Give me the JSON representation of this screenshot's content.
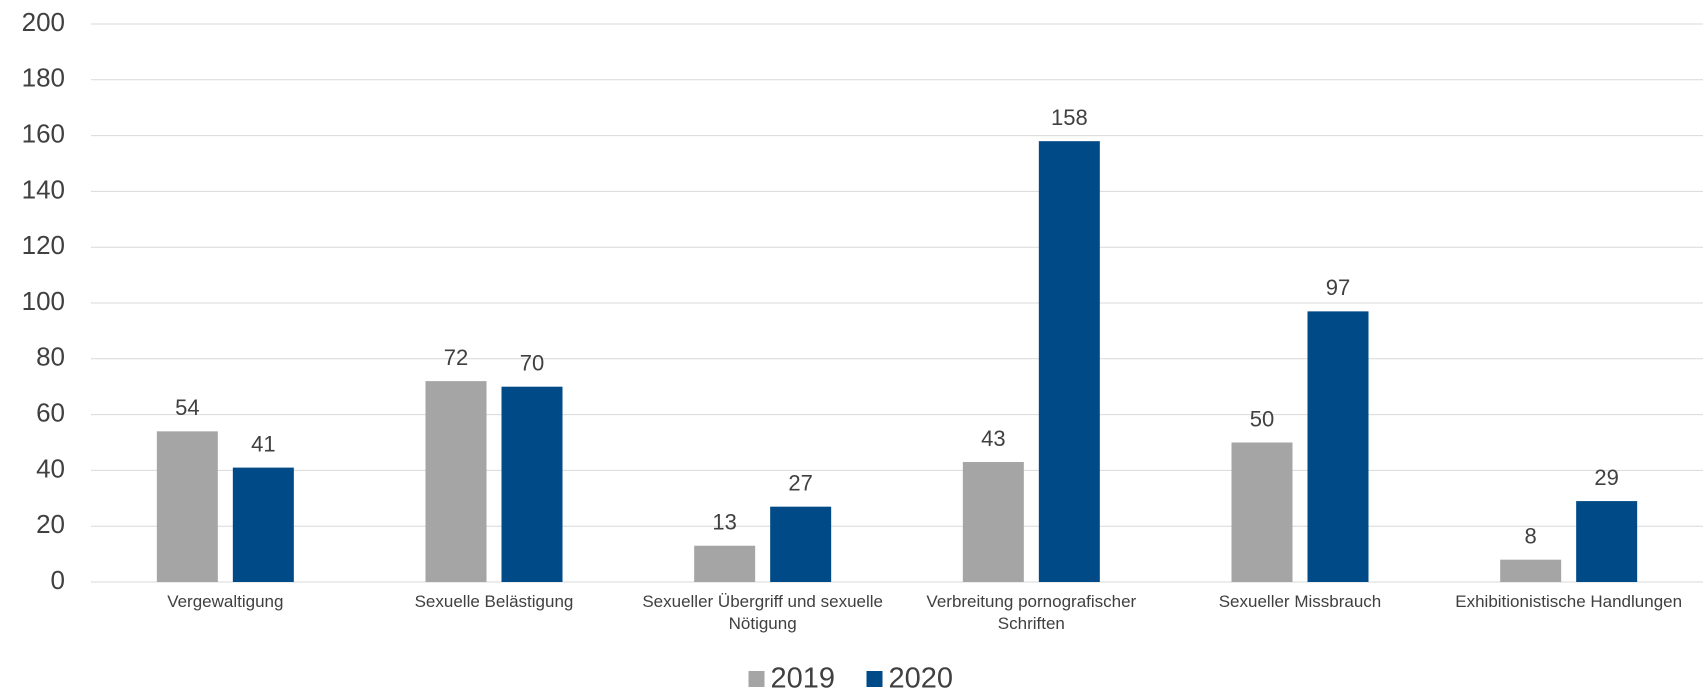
{
  "chart_data": {
    "type": "bar",
    "categories": [
      "Vergewaltigung",
      "Sexuelle Belästigung",
      "Sexueller Übergriff und sexuelle Nötigung",
      "Verbreitung pornografischer Schriften",
      "Sexueller Missbrauch",
      "Exhibitionistische Handlungen"
    ],
    "series": [
      {
        "name": "2019",
        "color": "#a5a5a5",
        "values": [
          54,
          72,
          13,
          43,
          50,
          8
        ]
      },
      {
        "name": "2020",
        "color": "#004a87",
        "values": [
          41,
          70,
          27,
          158,
          97,
          29
        ]
      }
    ],
    "ylim": [
      0,
      200
    ],
    "yticks": [
      0,
      20,
      40,
      60,
      80,
      100,
      120,
      140,
      160,
      180,
      200
    ],
    "grid": true,
    "legend": "bottom"
  }
}
